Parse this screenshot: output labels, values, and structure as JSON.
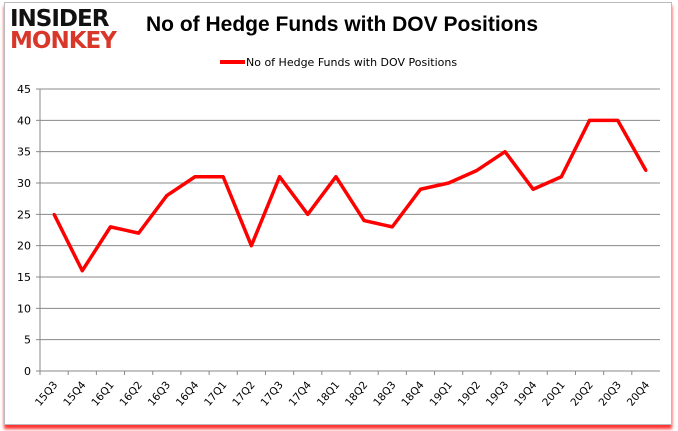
{
  "logo": {
    "line1": "INSIDER",
    "line2": "MONKEY"
  },
  "chart_data": {
    "type": "line",
    "title": "No of Hedge Funds with DOV Positions",
    "legend": {
      "placement": "top",
      "entries": [
        "No of Hedge Funds with DOV Positions"
      ]
    },
    "categories": [
      "15Q3",
      "15Q4",
      "16Q1",
      "16Q2",
      "16Q3",
      "16Q4",
      "17Q1",
      "17Q2",
      "17Q3",
      "17Q4",
      "18Q1",
      "18Q2",
      "18Q3",
      "18Q4",
      "19Q1",
      "19Q2",
      "19Q3",
      "19Q4",
      "20Q1",
      "20Q2",
      "20Q3",
      "20Q4"
    ],
    "series": [
      {
        "name": "No of Hedge Funds with DOV Positions",
        "color": "#ff0000",
        "values": [
          25,
          16,
          23,
          22,
          28,
          31,
          31,
          20,
          31,
          25,
          31,
          24,
          23,
          29,
          30,
          32,
          35,
          29,
          31,
          40,
          40,
          32
        ]
      }
    ],
    "ylim": [
      0,
      45
    ],
    "yticks": [
      0,
      5,
      10,
      15,
      20,
      25,
      30,
      35,
      40,
      45
    ],
    "grid": true,
    "xlabel": "",
    "ylabel": ""
  }
}
